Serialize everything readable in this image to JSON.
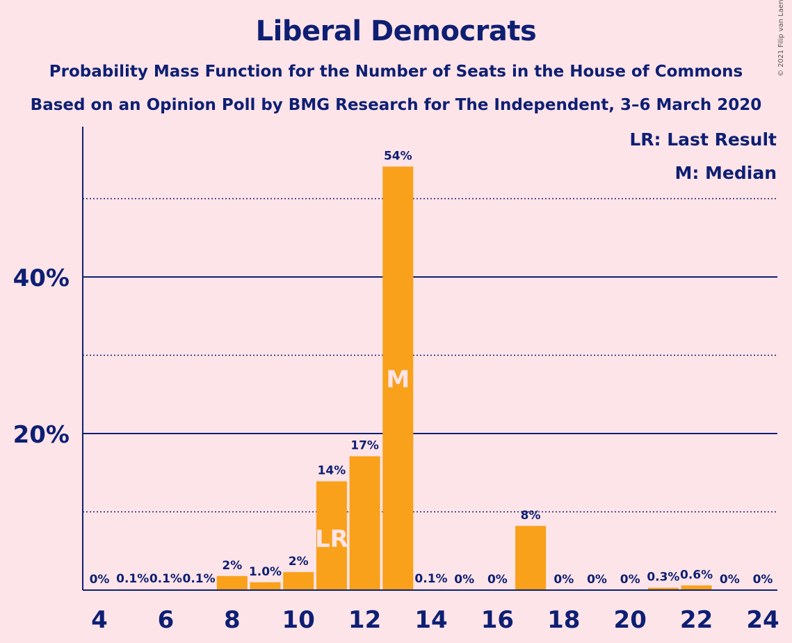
{
  "title": "Liberal Democrats",
  "subtitle1": "Probability Mass Function for the Number of Seats in the House of Commons",
  "subtitle2": "Based on an Opinion Poll by BMG Research for The Independent, 3–6 March 2020",
  "copyright": "© 2021 Filip van Laenen",
  "colors": {
    "background": "#fde4e8",
    "bar": "#f9a11b",
    "axis": "#0e1f73",
    "marker_text": "#fde4e8"
  },
  "chart_data": {
    "type": "bar",
    "x": [
      4,
      5,
      6,
      7,
      8,
      9,
      10,
      11,
      12,
      13,
      14,
      15,
      16,
      17,
      18,
      19,
      20,
      21,
      22,
      23,
      24
    ],
    "values": [
      0,
      0.1,
      0.1,
      0.1,
      1.8,
      1.0,
      2.3,
      13.9,
      17.1,
      54.1,
      0.1,
      0,
      0,
      8.2,
      0,
      0,
      0,
      0.3,
      0.6,
      0,
      0
    ],
    "data_labels": [
      "0%",
      "0.1%",
      "0.1%",
      "0.1%",
      "2%",
      "1.0%",
      "2%",
      "14%",
      "17%",
      "54%",
      "0.1%",
      "0%",
      "0%",
      "8%",
      "0%",
      "0%",
      "0%",
      "0.3%",
      "0.6%",
      "0%",
      "0%"
    ],
    "x_ticks": [
      "4",
      "6",
      "8",
      "10",
      "12",
      "14",
      "16",
      "18",
      "20",
      "22",
      "24"
    ],
    "y_ticks": [
      "20%",
      "40%"
    ],
    "ylim": [
      0,
      59
    ],
    "grid_major": [
      20,
      40
    ],
    "grid_minor": [
      10,
      30,
      50
    ],
    "markers": [
      {
        "x": 11,
        "label": "LR"
      },
      {
        "x": 13,
        "label": "M"
      }
    ],
    "legend": [
      "LR: Last Result",
      "M: Median"
    ],
    "legend_placement": "top-right"
  }
}
